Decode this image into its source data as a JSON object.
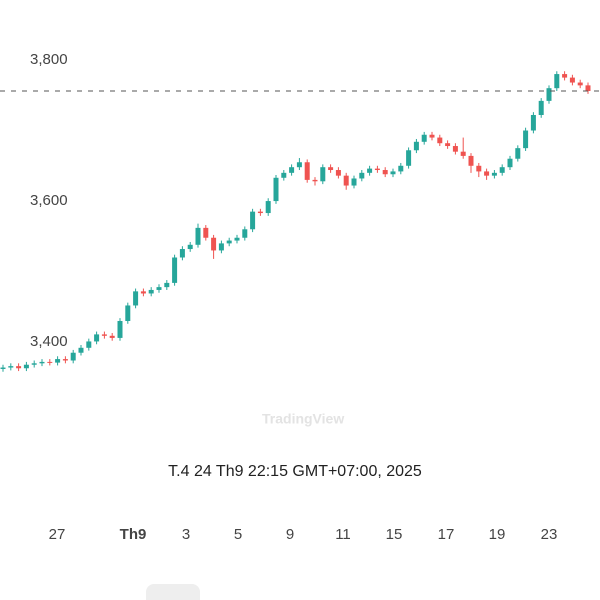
{
  "chart_data": {
    "type": "candlestick",
    "crosshair_label": "T.4 24 Th9 22:15 GMT+07:00, 2025",
    "watermark": "TradingView",
    "categories": [
      "27",
      "Th9",
      "3",
      "5",
      "9",
      "11",
      "15",
      "17",
      "19",
      "23"
    ],
    "ylim": [
      3318,
      3885
    ],
    "yticks": [
      {
        "value": 3400,
        "label": "3,400"
      },
      {
        "value": 3600,
        "label": "3,600"
      },
      {
        "value": 3800,
        "label": "3,800"
      }
    ],
    "up_color": "#26a69a",
    "down_color": "#ef5350",
    "open": [
      3362,
      3364,
      3366,
      3363,
      3368,
      3370,
      3372,
      3371,
      3376,
      3374,
      3385,
      3392,
      3401,
      3411,
      3409,
      3406,
      3430,
      3452,
      3472,
      3469,
      3474,
      3478,
      3484,
      3520,
      3532,
      3538,
      3562,
      3548,
      3530,
      3540,
      3544,
      3548,
      3560,
      3585,
      3583,
      3600,
      3633,
      3640,
      3648,
      3655,
      3630,
      3628,
      3648,
      3644,
      3636,
      3622,
      3632,
      3640,
      3646,
      3644,
      3638,
      3642,
      3650,
      3672,
      3684,
      3694,
      3690,
      3682,
      3678,
      3670,
      3664,
      3650,
      3642,
      3636,
      3640,
      3648,
      3660,
      3675,
      3700,
      3722,
      3742,
      3760,
      3780,
      3775,
      3768,
      3764
    ],
    "high": [
      3368,
      3370,
      3370,
      3372,
      3374,
      3376,
      3376,
      3380,
      3380,
      3389,
      3396,
      3405,
      3415,
      3415,
      3413,
      3434,
      3456,
      3476,
      3476,
      3478,
      3482,
      3488,
      3524,
      3536,
      3542,
      3568,
      3566,
      3552,
      3544,
      3548,
      3552,
      3564,
      3589,
      3589,
      3604,
      3637,
      3644,
      3652,
      3661,
      3659,
      3634,
      3652,
      3652,
      3648,
      3640,
      3636,
      3644,
      3650,
      3650,
      3648,
      3646,
      3654,
      3676,
      3688,
      3698,
      3698,
      3694,
      3686,
      3682,
      3690,
      3668,
      3654,
      3646,
      3644,
      3652,
      3664,
      3679,
      3704,
      3726,
      3746,
      3764,
      3784,
      3784,
      3779,
      3772,
      3768
    ],
    "low": [
      3358,
      3360,
      3359,
      3359,
      3364,
      3366,
      3367,
      3367,
      3370,
      3370,
      3381,
      3388,
      3397,
      3405,
      3402,
      3402,
      3426,
      3448,
      3465,
      3465,
      3470,
      3474,
      3480,
      3516,
      3528,
      3534,
      3544,
      3518,
      3526,
      3536,
      3540,
      3544,
      3556,
      3579,
      3579,
      3596,
      3629,
      3636,
      3644,
      3626,
      3622,
      3624,
      3640,
      3632,
      3616,
      3618,
      3628,
      3636,
      3640,
      3634,
      3634,
      3638,
      3646,
      3668,
      3680,
      3686,
      3678,
      3674,
      3666,
      3660,
      3640,
      3634,
      3630,
      3632,
      3636,
      3644,
      3656,
      3671,
      3696,
      3718,
      3738,
      3756,
      3771,
      3764,
      3760,
      3752
    ],
    "close": [
      3364,
      3366,
      3363,
      3368,
      3370,
      3372,
      3371,
      3376,
      3374,
      3385,
      3392,
      3401,
      3411,
      3409,
      3406,
      3430,
      3452,
      3472,
      3469,
      3474,
      3478,
      3484,
      3520,
      3532,
      3538,
      3562,
      3548,
      3530,
      3540,
      3544,
      3548,
      3560,
      3585,
      3583,
      3600,
      3633,
      3640,
      3648,
      3655,
      3630,
      3628,
      3648,
      3644,
      3636,
      3622,
      3632,
      3640,
      3646,
      3644,
      3638,
      3642,
      3650,
      3672,
      3684,
      3694,
      3690,
      3682,
      3678,
      3670,
      3664,
      3650,
      3642,
      3636,
      3640,
      3648,
      3660,
      3675,
      3700,
      3722,
      3742,
      3760,
      3780,
      3775,
      3768,
      3764,
      3756
    ]
  }
}
